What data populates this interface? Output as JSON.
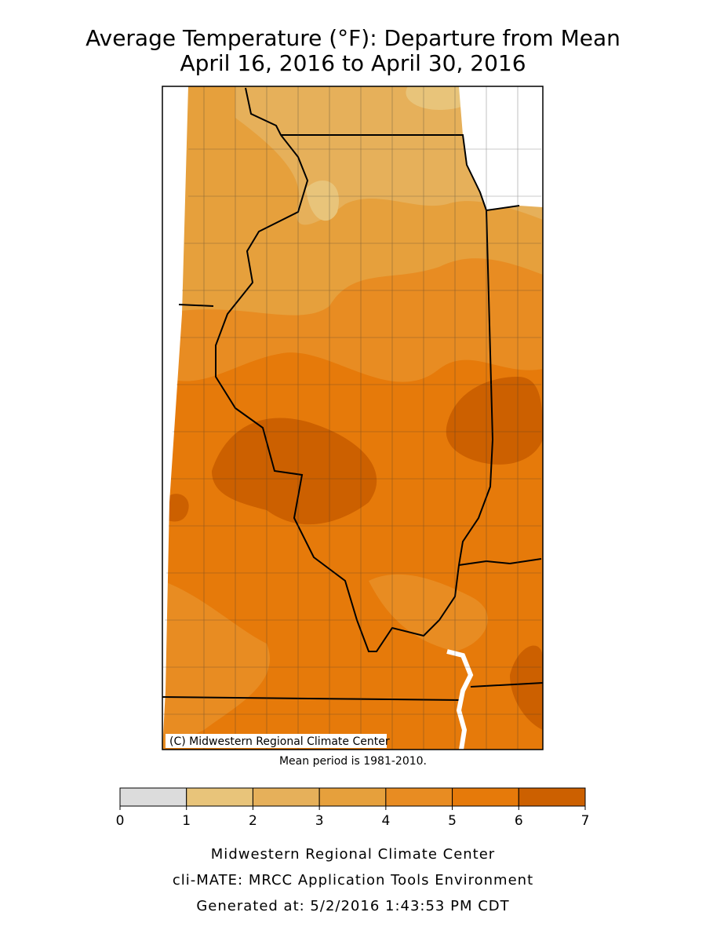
{
  "title": "Average Temperature (°F): Departure from Mean",
  "subtitle": "April 16, 2016 to April 30, 2016",
  "map": {
    "credit": "(C) Midwestern Regional Climate Center",
    "note": "Mean period is 1981-2010."
  },
  "legend": {
    "ticks": [
      0,
      1,
      2,
      3,
      4,
      5,
      6,
      7
    ],
    "colors": [
      "#dcdcdc",
      "#e8c47a",
      "#e6b05a",
      "#e6a03c",
      "#e88c22",
      "#e67a0a",
      "#cc6000"
    ]
  },
  "footer": [
    "Midwestern Regional Climate Center",
    "cli-MATE: MRCC Application Tools Environment",
    "Generated at: 5/2/2016 1:43:53 PM CDT"
  ]
}
